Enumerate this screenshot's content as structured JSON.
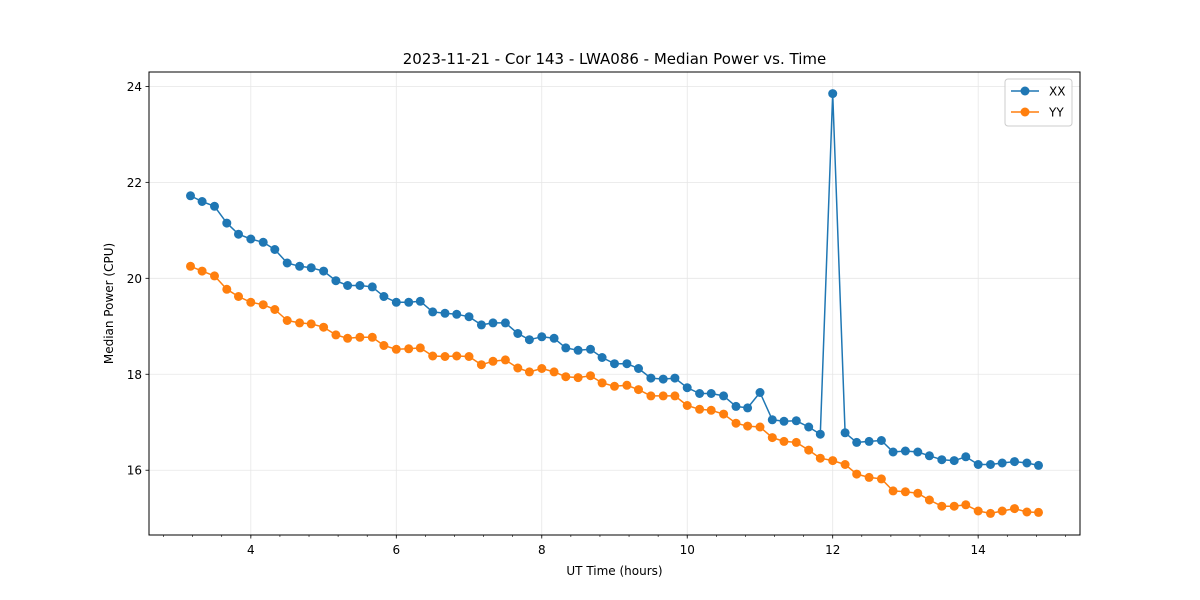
{
  "chart_data": {
    "type": "line",
    "title": "2023-11-21 - Cor 143 - LWA086 - Median Power vs. Time",
    "xlabel": "UT Time (hours)",
    "ylabel": "Median Power (CPU)",
    "xlim": [
      2.6,
      15.4
    ],
    "ylim": [
      14.65,
      24.3
    ],
    "xticks": [
      4,
      6,
      8,
      10,
      12,
      14
    ],
    "xtick_labels": [
      "4",
      "6",
      "8",
      "10",
      "12",
      "14"
    ],
    "yticks": [
      16,
      18,
      20,
      22,
      24
    ],
    "ytick_labels": [
      "16",
      "18",
      "20",
      "22",
      "24"
    ],
    "grid": true,
    "legend_position": "top-right",
    "x": [
      3.17,
      3.33,
      3.5,
      3.67,
      3.83,
      4.0,
      4.17,
      4.33,
      4.5,
      4.67,
      4.83,
      5.0,
      5.17,
      5.33,
      5.5,
      5.67,
      5.83,
      6.0,
      6.17,
      6.33,
      6.5,
      6.67,
      6.83,
      7.0,
      7.17,
      7.33,
      7.5,
      7.67,
      7.83,
      8.0,
      8.17,
      8.33,
      8.5,
      8.67,
      8.83,
      9.0,
      9.17,
      9.33,
      9.5,
      9.67,
      9.83,
      10.0,
      10.17,
      10.33,
      10.5,
      10.67,
      10.83,
      11.0,
      11.17,
      11.33,
      11.5,
      11.67,
      11.83,
      12.0,
      12.17,
      12.33,
      12.5,
      12.67,
      12.83,
      13.0,
      13.17,
      13.33,
      13.5,
      13.67,
      13.83,
      14.0,
      14.17,
      14.33,
      14.5,
      14.67,
      14.83
    ],
    "series": [
      {
        "name": "XX",
        "color": "#1f77b4",
        "values": [
          21.72,
          21.6,
          21.5,
          21.15,
          20.92,
          20.82,
          20.75,
          20.6,
          20.32,
          20.25,
          20.22,
          20.15,
          19.95,
          19.85,
          19.85,
          19.82,
          19.62,
          19.5,
          19.5,
          19.52,
          19.3,
          19.27,
          19.25,
          19.2,
          19.03,
          19.07,
          19.07,
          18.85,
          18.72,
          18.78,
          18.75,
          18.55,
          18.5,
          18.52,
          18.35,
          18.22,
          18.22,
          18.12,
          17.92,
          17.9,
          17.92,
          17.72,
          17.6,
          17.6,
          17.55,
          17.33,
          17.3,
          17.62,
          17.05,
          17.02,
          17.03,
          16.9,
          16.75,
          23.85,
          16.78,
          16.58,
          16.6,
          16.62,
          16.38,
          16.4,
          16.38,
          16.3,
          16.22,
          16.2,
          16.28,
          16.12,
          16.12,
          16.15,
          16.18,
          16.15,
          16.1
        ]
      },
      {
        "name": "YY",
        "color": "#ff7f0e",
        "values": [
          20.25,
          20.15,
          20.05,
          19.77,
          19.62,
          19.5,
          19.45,
          19.35,
          19.12,
          19.07,
          19.05,
          18.98,
          18.82,
          18.75,
          18.77,
          18.77,
          18.6,
          18.52,
          18.53,
          18.55,
          18.38,
          18.37,
          18.38,
          18.37,
          18.2,
          18.27,
          18.3,
          18.13,
          18.05,
          18.12,
          18.05,
          17.95,
          17.93,
          17.97,
          17.82,
          17.75,
          17.77,
          17.68,
          17.55,
          17.55,
          17.55,
          17.35,
          17.27,
          17.25,
          17.17,
          16.98,
          16.92,
          16.9,
          16.68,
          16.6,
          16.58,
          16.42,
          16.25,
          16.2,
          16.12,
          15.92,
          15.85,
          15.82,
          15.57,
          15.55,
          15.52,
          15.38,
          15.25,
          15.25,
          15.28,
          15.15,
          15.1,
          15.15,
          15.2,
          15.13,
          15.12
        ]
      }
    ]
  }
}
